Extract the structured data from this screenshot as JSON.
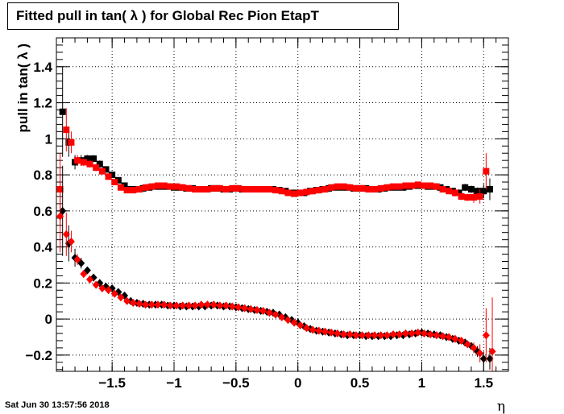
{
  "timestamp": "Sat Jun 30 13:57:56 2018",
  "colors": {
    "series_black": "#000000",
    "series_red": "#ff0000",
    "grid": "#000000"
  },
  "chart_data": {
    "type": "scatter",
    "title": "Fitted pull in tan( λ ) for Global Rec Pion EtapT",
    "xlabel": "η",
    "ylabel": "pull in tan( λ )",
    "xlim": [
      -1.95,
      1.7
    ],
    "ylim": [
      -0.29,
      1.56
    ],
    "xticks": [
      -1.5,
      -1,
      -0.5,
      0,
      0.5,
      1,
      1.5
    ],
    "xtick_labels": [
      "−1.5",
      "−1",
      "−0.5",
      "0",
      "0.5",
      "1",
      "1.5"
    ],
    "yticks": [
      -0.2,
      0,
      0.2,
      0.4,
      0.6,
      0.8,
      1,
      1.2,
      1.4
    ],
    "ytick_labels": [
      "−0.2",
      "0",
      "0.2",
      "0.4",
      "0.6",
      "0.8",
      "1",
      "1.2",
      "1.4"
    ],
    "grid": true,
    "series": [
      {
        "color": "#000000",
        "marker": "square",
        "x": [
          -1.9,
          -1.85,
          -1.8,
          -1.75,
          -1.7,
          -1.65,
          -1.6,
          -1.55,
          -1.5,
          -1.45,
          -1.4,
          -1.35,
          -1.3,
          -1.25,
          -1.2,
          -1.15,
          -1.1,
          -1.05,
          -1,
          -0.95,
          -0.9,
          -0.85,
          -0.8,
          -0.75,
          -0.7,
          -0.65,
          -0.6,
          -0.55,
          -0.5,
          -0.45,
          -0.4,
          -0.35,
          -0.3,
          -0.25,
          -0.2,
          -0.15,
          -0.1,
          -0.05,
          0,
          0.05,
          0.1,
          0.15,
          0.2,
          0.25,
          0.3,
          0.35,
          0.4,
          0.45,
          0.5,
          0.55,
          0.6,
          0.65,
          0.7,
          0.75,
          0.8,
          0.85,
          0.9,
          0.95,
          1,
          1.05,
          1.1,
          1.15,
          1.2,
          1.25,
          1.3,
          1.35,
          1.4,
          1.45,
          1.5,
          1.55
        ],
        "y": [
          1.15,
          0.98,
          0.87,
          0.88,
          0.89,
          0.89,
          0.86,
          0.83,
          0.8,
          0.77,
          0.74,
          0.72,
          0.72,
          0.725,
          0.73,
          0.735,
          0.735,
          0.735,
          0.73,
          0.73,
          0.725,
          0.725,
          0.72,
          0.72,
          0.725,
          0.725,
          0.72,
          0.72,
          0.725,
          0.72,
          0.72,
          0.72,
          0.72,
          0.72,
          0.72,
          0.715,
          0.71,
          0.7,
          0.7,
          0.7,
          0.71,
          0.715,
          0.72,
          0.725,
          0.73,
          0.73,
          0.73,
          0.725,
          0.725,
          0.725,
          0.72,
          0.72,
          0.725,
          0.73,
          0.73,
          0.73,
          0.735,
          0.74,
          0.74,
          0.735,
          0.735,
          0.73,
          0.72,
          0.71,
          0.7,
          0.73,
          0.72,
          0.71,
          0.71,
          0.72
        ],
        "yerr": [
          0.25,
          0.08,
          0.04,
          0.03,
          0.02,
          0.02,
          0.02,
          0.015,
          0.01,
          0.01,
          0.01,
          0.01,
          0.01,
          0.01,
          0.01,
          0.01,
          0.01,
          0.01,
          0.01,
          0.01,
          0.01,
          0.01,
          0.01,
          0.01,
          0.01,
          0.01,
          0.01,
          0.01,
          0.01,
          0.01,
          0.01,
          0.01,
          0.01,
          0.01,
          0.01,
          0.01,
          0.01,
          0.01,
          0.01,
          0.01,
          0.01,
          0.01,
          0.01,
          0.01,
          0.01,
          0.01,
          0.01,
          0.01,
          0.01,
          0.01,
          0.01,
          0.01,
          0.01,
          0.01,
          0.01,
          0.01,
          0.01,
          0.01,
          0.01,
          0.01,
          0.01,
          0.01,
          0.01,
          0.01,
          0.02,
          0.02,
          0.02,
          0.02,
          0.04,
          0.06
        ]
      },
      {
        "color": "#ff0000",
        "marker": "square",
        "x": [
          -1.92,
          -1.87,
          -1.83,
          -1.78,
          -1.73,
          -1.68,
          -1.63,
          -1.58,
          -1.53,
          -1.48,
          -1.43,
          -1.38,
          -1.33,
          -1.28,
          -1.23,
          -1.18,
          -1.13,
          -1.08,
          -1.03,
          -0.98,
          -0.93,
          -0.88,
          -0.83,
          -0.78,
          -0.73,
          -0.68,
          -0.63,
          -0.58,
          -0.53,
          -0.48,
          -0.43,
          -0.38,
          -0.33,
          -0.28,
          -0.23,
          -0.18,
          -0.13,
          -0.08,
          -0.03,
          0.02,
          0.07,
          0.12,
          0.17,
          0.22,
          0.27,
          0.32,
          0.37,
          0.42,
          0.47,
          0.52,
          0.57,
          0.62,
          0.67,
          0.72,
          0.77,
          0.82,
          0.87,
          0.92,
          0.97,
          1.02,
          1.07,
          1.12,
          1.17,
          1.22,
          1.27,
          1.32,
          1.37,
          1.42,
          1.47,
          1.52
        ],
        "y": [
          0.72,
          1.05,
          0.98,
          0.88,
          0.87,
          0.86,
          0.84,
          0.82,
          0.79,
          0.76,
          0.73,
          0.715,
          0.715,
          0.72,
          0.73,
          0.735,
          0.74,
          0.74,
          0.735,
          0.735,
          0.73,
          0.725,
          0.72,
          0.72,
          0.72,
          0.725,
          0.725,
          0.72,
          0.725,
          0.725,
          0.72,
          0.72,
          0.72,
          0.72,
          0.72,
          0.715,
          0.71,
          0.7,
          0.695,
          0.7,
          0.705,
          0.71,
          0.715,
          0.72,
          0.73,
          0.735,
          0.735,
          0.73,
          0.725,
          0.725,
          0.72,
          0.72,
          0.725,
          0.73,
          0.735,
          0.735,
          0.74,
          0.74,
          0.745,
          0.74,
          0.74,
          0.735,
          0.72,
          0.71,
          0.7,
          0.68,
          0.675,
          0.675,
          0.68,
          0.82
        ],
        "yerr": [
          0.2,
          0.12,
          0.06,
          0.03,
          0.02,
          0.02,
          0.02,
          0.015,
          0.01,
          0.01,
          0.01,
          0.01,
          0.01,
          0.01,
          0.01,
          0.01,
          0.01,
          0.01,
          0.01,
          0.01,
          0.01,
          0.01,
          0.01,
          0.01,
          0.01,
          0.01,
          0.01,
          0.01,
          0.01,
          0.01,
          0.01,
          0.01,
          0.01,
          0.01,
          0.01,
          0.01,
          0.01,
          0.01,
          0.01,
          0.01,
          0.01,
          0.01,
          0.01,
          0.01,
          0.01,
          0.01,
          0.01,
          0.01,
          0.01,
          0.01,
          0.01,
          0.01,
          0.01,
          0.01,
          0.01,
          0.01,
          0.01,
          0.01,
          0.01,
          0.01,
          0.01,
          0.01,
          0.01,
          0.01,
          0.02,
          0.02,
          0.02,
          0.03,
          0.04,
          0.1
        ]
      },
      {
        "color": "#000000",
        "marker": "diamond",
        "x": [
          -1.9,
          -1.85,
          -1.8,
          -1.75,
          -1.7,
          -1.65,
          -1.6,
          -1.55,
          -1.5,
          -1.45,
          -1.4,
          -1.35,
          -1.3,
          -1.25,
          -1.2,
          -1.15,
          -1.1,
          -1.05,
          -1,
          -0.95,
          -0.9,
          -0.85,
          -0.8,
          -0.75,
          -0.7,
          -0.65,
          -0.6,
          -0.55,
          -0.5,
          -0.45,
          -0.4,
          -0.35,
          -0.3,
          -0.25,
          -0.2,
          -0.15,
          -0.1,
          -0.05,
          0,
          0.05,
          0.1,
          0.15,
          0.2,
          0.25,
          0.3,
          0.35,
          0.4,
          0.45,
          0.5,
          0.55,
          0.6,
          0.65,
          0.7,
          0.75,
          0.8,
          0.85,
          0.9,
          0.95,
          1,
          1.05,
          1.1,
          1.15,
          1.2,
          1.25,
          1.3,
          1.35,
          1.4,
          1.45,
          1.5,
          1.55
        ],
        "y": [
          0.6,
          0.42,
          0.34,
          0.31,
          0.27,
          0.23,
          0.2,
          0.18,
          0.17,
          0.15,
          0.13,
          0.1,
          0.09,
          0.085,
          0.08,
          0.08,
          0.08,
          0.075,
          0.075,
          0.07,
          0.07,
          0.07,
          0.07,
          0.07,
          0.075,
          0.075,
          0.07,
          0.07,
          0.065,
          0.06,
          0.055,
          0.05,
          0.045,
          0.04,
          0.035,
          0.025,
          0.01,
          -0.005,
          -0.02,
          -0.04,
          -0.055,
          -0.065,
          -0.07,
          -0.075,
          -0.08,
          -0.085,
          -0.09,
          -0.09,
          -0.09,
          -0.095,
          -0.095,
          -0.095,
          -0.095,
          -0.095,
          -0.09,
          -0.09,
          -0.085,
          -0.08,
          -0.075,
          -0.08,
          -0.085,
          -0.09,
          -0.1,
          -0.11,
          -0.12,
          -0.13,
          -0.15,
          -0.18,
          -0.22,
          -0.22
        ],
        "yerr": [
          0.25,
          0.1,
          0.05,
          0.03,
          0.02,
          0.02,
          0.02,
          0.015,
          0.01,
          0.01,
          0.01,
          0.01,
          0.01,
          0.01,
          0.01,
          0.01,
          0.01,
          0.01,
          0.01,
          0.01,
          0.01,
          0.01,
          0.01,
          0.01,
          0.01,
          0.01,
          0.01,
          0.01,
          0.01,
          0.01,
          0.01,
          0.01,
          0.01,
          0.01,
          0.01,
          0.01,
          0.01,
          0.01,
          0.01,
          0.01,
          0.01,
          0.01,
          0.01,
          0.01,
          0.01,
          0.01,
          0.01,
          0.01,
          0.01,
          0.01,
          0.01,
          0.01,
          0.01,
          0.01,
          0.01,
          0.01,
          0.01,
          0.01,
          0.01,
          0.01,
          0.01,
          0.01,
          0.01,
          0.01,
          0.02,
          0.02,
          0.02,
          0.03,
          0.04,
          0.06
        ]
      },
      {
        "color": "#ff0000",
        "marker": "diamond",
        "x": [
          -1.92,
          -1.87,
          -1.83,
          -1.78,
          -1.73,
          -1.68,
          -1.63,
          -1.58,
          -1.53,
          -1.48,
          -1.43,
          -1.38,
          -1.33,
          -1.28,
          -1.23,
          -1.18,
          -1.13,
          -1.08,
          -1.03,
          -0.98,
          -0.93,
          -0.88,
          -0.83,
          -0.78,
          -0.73,
          -0.68,
          -0.63,
          -0.58,
          -0.53,
          -0.48,
          -0.43,
          -0.38,
          -0.33,
          -0.28,
          -0.23,
          -0.18,
          -0.13,
          -0.08,
          -0.03,
          0.02,
          0.07,
          0.12,
          0.17,
          0.22,
          0.27,
          0.32,
          0.37,
          0.42,
          0.47,
          0.52,
          0.57,
          0.62,
          0.67,
          0.72,
          0.77,
          0.82,
          0.87,
          0.92,
          0.97,
          1.02,
          1.07,
          1.12,
          1.17,
          1.22,
          1.27,
          1.32,
          1.37,
          1.42,
          1.47,
          1.52,
          1.57
        ],
        "y": [
          0.57,
          0.47,
          0.43,
          0.33,
          0.25,
          0.22,
          0.19,
          0.17,
          0.16,
          0.14,
          0.12,
          0.1,
          0.09,
          0.085,
          0.08,
          0.08,
          0.08,
          0.08,
          0.075,
          0.075,
          0.075,
          0.075,
          0.075,
          0.08,
          0.08,
          0.08,
          0.075,
          0.075,
          0.07,
          0.065,
          0.06,
          0.055,
          0.05,
          0.045,
          0.035,
          0.025,
          0.01,
          -0.005,
          -0.02,
          -0.035,
          -0.05,
          -0.06,
          -0.065,
          -0.07,
          -0.075,
          -0.08,
          -0.085,
          -0.085,
          -0.09,
          -0.09,
          -0.09,
          -0.09,
          -0.09,
          -0.09,
          -0.085,
          -0.085,
          -0.08,
          -0.08,
          -0.075,
          -0.08,
          -0.085,
          -0.09,
          -0.095,
          -0.1,
          -0.11,
          -0.12,
          -0.14,
          -0.16,
          -0.19,
          -0.09,
          -0.18
        ],
        "yerr": [
          0.2,
          0.12,
          0.06,
          0.03,
          0.02,
          0.02,
          0.02,
          0.015,
          0.01,
          0.01,
          0.01,
          0.01,
          0.01,
          0.01,
          0.01,
          0.01,
          0.01,
          0.01,
          0.01,
          0.01,
          0.01,
          0.01,
          0.01,
          0.01,
          0.01,
          0.01,
          0.01,
          0.01,
          0.01,
          0.01,
          0.01,
          0.01,
          0.01,
          0.01,
          0.01,
          0.01,
          0.01,
          0.01,
          0.01,
          0.01,
          0.01,
          0.01,
          0.01,
          0.01,
          0.01,
          0.01,
          0.01,
          0.01,
          0.01,
          0.01,
          0.01,
          0.01,
          0.01,
          0.01,
          0.01,
          0.01,
          0.01,
          0.01,
          0.01,
          0.01,
          0.01,
          0.01,
          0.01,
          0.01,
          0.02,
          0.02,
          0.02,
          0.03,
          0.05,
          0.15,
          0.3
        ]
      }
    ]
  }
}
